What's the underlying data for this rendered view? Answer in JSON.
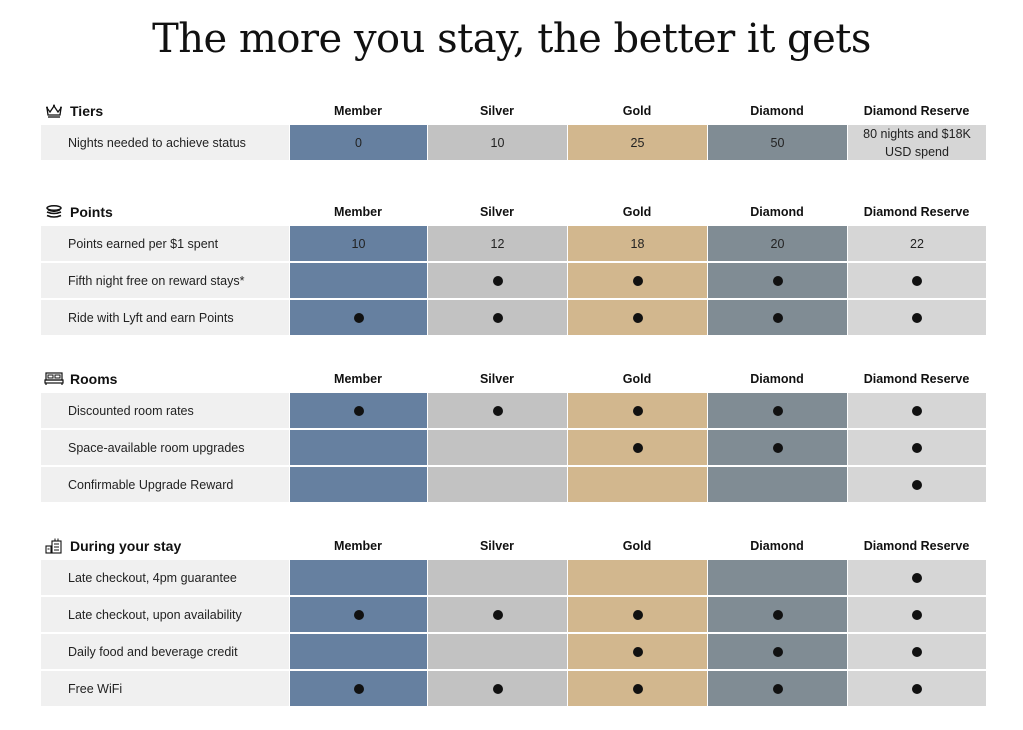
{
  "page_title": "The more you stay, the better it gets",
  "tiers": [
    "Member",
    "Silver",
    "Gold",
    "Diamond",
    "Diamond Reserve"
  ],
  "tier_colors": {
    "Member": "#6680a0",
    "Silver": "#c2c2c2",
    "Gold": "#d2b78e",
    "Diamond": "#808c94",
    "Diamond Reserve": "#d6d6d6"
  },
  "label_bg": "#f0f0f0",
  "sections": [
    {
      "title": "Tiers",
      "icon": "crown-icon",
      "rows": [
        {
          "label": "Nights needed to achieve status",
          "values": [
            "0",
            "10",
            "25",
            "50",
            "80 nights and $18K USD spend"
          ]
        }
      ]
    },
    {
      "title": "Points",
      "icon": "coins-icon",
      "rows": [
        {
          "label": "Points earned per $1 spent",
          "values": [
            "10",
            "12",
            "18",
            "20",
            "22"
          ]
        },
        {
          "label": "Fifth night free on reward stays*",
          "values": [
            false,
            true,
            true,
            true,
            true
          ]
        },
        {
          "label": "Ride with Lyft and earn Points",
          "values": [
            true,
            true,
            true,
            true,
            true
          ]
        }
      ]
    },
    {
      "title": "Rooms",
      "icon": "bed-icon",
      "rows": [
        {
          "label": "Discounted room rates",
          "values": [
            true,
            true,
            true,
            true,
            true
          ]
        },
        {
          "label": "Space-available room upgrades",
          "values": [
            false,
            false,
            true,
            true,
            true
          ]
        },
        {
          "label": "Confirmable Upgrade Reward",
          "values": [
            false,
            false,
            false,
            false,
            true
          ]
        }
      ]
    },
    {
      "title": "During your stay",
      "icon": "hotel-building-icon",
      "rows": [
        {
          "label": "Late checkout, 4pm guarantee",
          "values": [
            false,
            false,
            false,
            false,
            true
          ]
        },
        {
          "label": "Late checkout, upon availability",
          "values": [
            true,
            true,
            true,
            true,
            true
          ]
        },
        {
          "label": "Daily food and beverage credit",
          "values": [
            false,
            false,
            true,
            true,
            true
          ]
        },
        {
          "label": "Free WiFi",
          "values": [
            true,
            true,
            true,
            true,
            true
          ]
        }
      ]
    }
  ]
}
